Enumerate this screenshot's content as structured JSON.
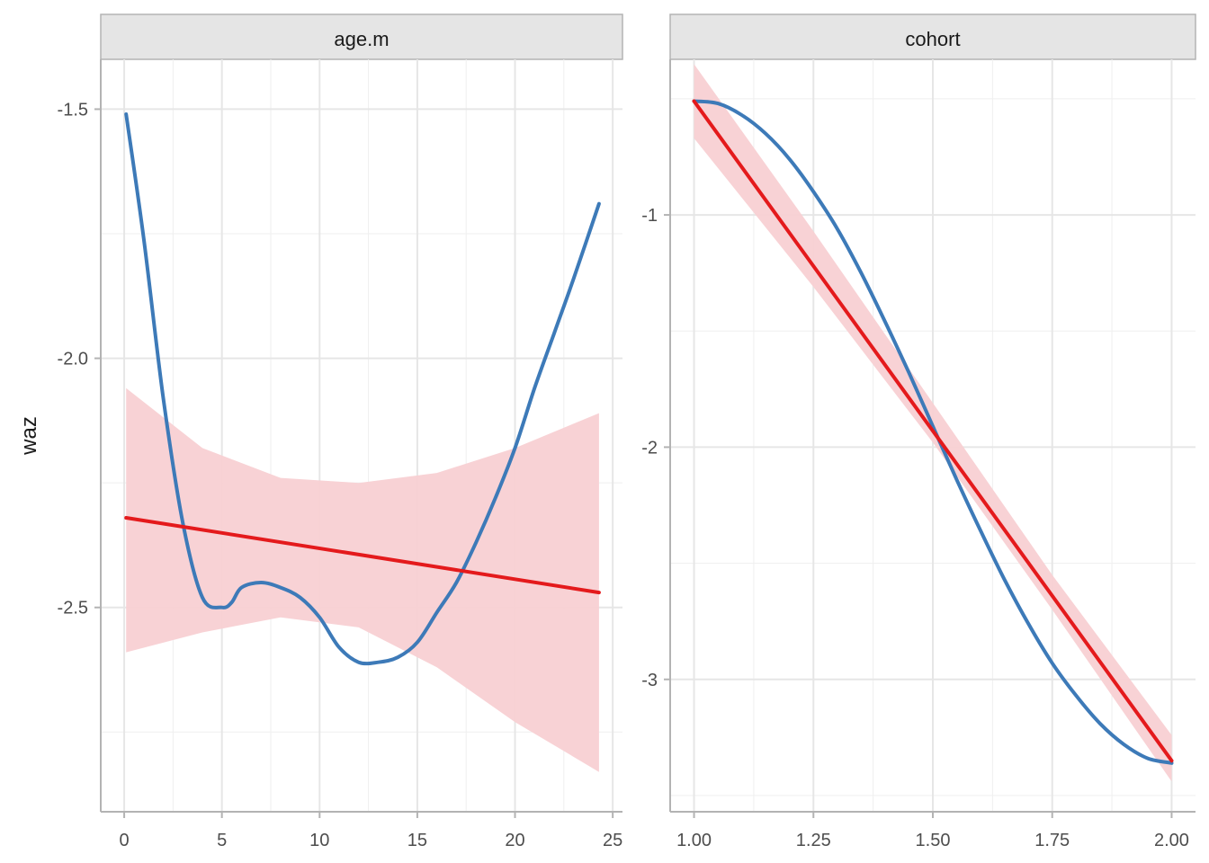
{
  "chart_data": [
    {
      "type": "line",
      "panel": "age.m",
      "ylabel": "waz",
      "xlim": [
        -1.2,
        25.5
      ],
      "ylim": [
        -2.91,
        -1.4
      ],
      "x_ticks": [
        0,
        5,
        10,
        15,
        20,
        25
      ],
      "x_tick_labels": [
        "0",
        "5",
        "10",
        "15",
        "20",
        "25"
      ],
      "y_ticks": [
        -1.5,
        -2.0,
        -2.5
      ],
      "y_tick_labels": [
        "-1.5",
        "-2.0",
        "-2.5"
      ],
      "grid": true,
      "colors": {
        "smooth": "#3d7ab8",
        "linear": "#e41a1c",
        "band": "#f8d0d3"
      },
      "series": [
        {
          "kind": "smooth",
          "x": [
            0.1,
            1,
            2,
            3,
            4,
            5,
            5.5,
            6,
            7,
            8,
            9,
            10,
            11,
            12,
            13,
            14,
            15,
            16,
            17,
            18,
            19,
            20,
            21,
            22,
            23,
            24.3
          ],
          "y": [
            -1.51,
            -1.76,
            -2.08,
            -2.33,
            -2.48,
            -2.5,
            -2.49,
            -2.46,
            -2.45,
            -2.46,
            -2.48,
            -2.52,
            -2.58,
            -2.61,
            -2.61,
            -2.6,
            -2.57,
            -2.51,
            -2.45,
            -2.37,
            -2.28,
            -2.18,
            -2.06,
            -1.95,
            -1.84,
            -1.69
          ]
        },
        {
          "kind": "linear",
          "x": [
            0.1,
            24.3
          ],
          "y": [
            -2.32,
            -2.47
          ]
        },
        {
          "kind": "band",
          "x": [
            0.1,
            4,
            8,
            12,
            16,
            20,
            24.3
          ],
          "lower": [
            -2.59,
            -2.55,
            -2.52,
            -2.54,
            -2.62,
            -2.73,
            -2.83
          ],
          "upper": [
            -2.06,
            -2.18,
            -2.24,
            -2.25,
            -2.23,
            -2.18,
            -2.11
          ]
        }
      ]
    },
    {
      "type": "line",
      "panel": "cohort",
      "ylabel": "",
      "xlim": [
        0.95,
        2.05
      ],
      "ylim": [
        -3.57,
        -0.33
      ],
      "x_ticks": [
        1.0,
        1.25,
        1.5,
        1.75,
        2.0
      ],
      "x_tick_labels": [
        "1.00",
        "1.25",
        "1.50",
        "1.75",
        "2.00"
      ],
      "y_ticks": [
        -1,
        -2,
        -3
      ],
      "y_tick_labels": [
        "-1",
        "-2",
        "-3"
      ],
      "grid": true,
      "colors": {
        "smooth": "#3d7ab8",
        "linear": "#e41a1c",
        "band": "#f8d0d3"
      },
      "series": [
        {
          "kind": "smooth",
          "x": [
            1.0,
            1.05,
            1.1,
            1.15,
            1.2,
            1.25,
            1.3,
            1.35,
            1.4,
            1.45,
            1.5,
            1.55,
            1.6,
            1.65,
            1.7,
            1.75,
            1.8,
            1.85,
            1.9,
            1.95,
            2.0
          ],
          "y": [
            -0.51,
            -0.52,
            -0.57,
            -0.65,
            -0.76,
            -0.9,
            -1.06,
            -1.25,
            -1.46,
            -1.68,
            -1.91,
            -2.14,
            -2.36,
            -2.57,
            -2.76,
            -2.93,
            -3.07,
            -3.19,
            -3.28,
            -3.34,
            -3.36
          ]
        },
        {
          "kind": "linear",
          "x": [
            1.0,
            2.0
          ],
          "y": [
            -0.51,
            -3.35
          ]
        },
        {
          "kind": "band",
          "x": [
            1.0,
            1.25,
            1.5,
            1.75,
            2.0
          ],
          "lower": [
            -0.67,
            -1.31,
            -1.98,
            -2.7,
            -3.44
          ],
          "upper": [
            -0.35,
            -1.07,
            -1.81,
            -2.55,
            -3.24
          ]
        }
      ]
    }
  ]
}
